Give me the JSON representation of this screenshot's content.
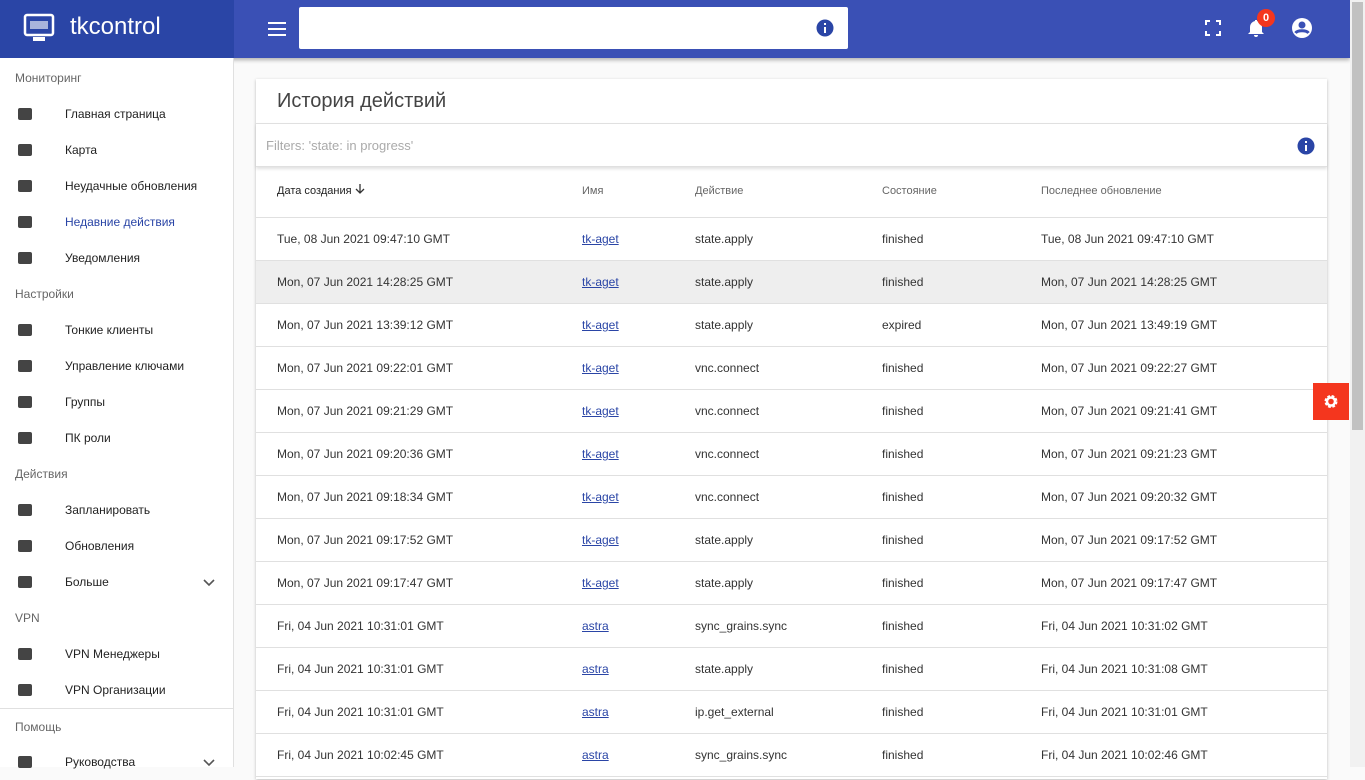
{
  "header": {
    "logo": "tkcontrol",
    "notifications": "0"
  },
  "sidebar": [
    {
      "title": "Мониторинг",
      "items": [
        "Главная страница",
        "Карта",
        "Неудачные обновления",
        "Недавние действия",
        "Уведомления"
      ]
    },
    {
      "title": "Настройки",
      "items": [
        "Тонкие клиенты",
        "Управление ключами",
        "Группы",
        "ПК роли"
      ]
    },
    {
      "title": "Действия",
      "items": [
        "Запланировать",
        "Обновления",
        "Больше"
      ]
    },
    {
      "title": "VPN",
      "items": [
        "VPN Менеджеры",
        "VPN Организации"
      ]
    },
    {
      "title": "Помощь",
      "items": [
        "Руководства"
      ]
    }
  ],
  "card": {
    "title": "История действий",
    "filter": "Filters: 'state: in progress'"
  },
  "table": {
    "columns": [
      "Дата создания",
      "Имя",
      "Действие",
      "Состояние",
      "Последнее обновление"
    ],
    "rows": [
      [
        "Tue, 08 Jun 2021 09:47:10 GMT",
        "tk-aget",
        "state.apply",
        "finished",
        "Tue, 08 Jun 2021 09:47:10 GMT"
      ],
      [
        "Mon, 07 Jun 2021 14:28:25 GMT",
        "tk-aget",
        "state.apply",
        "finished",
        "Mon, 07 Jun 2021 14:28:25 GMT"
      ],
      [
        "Mon, 07 Jun 2021 13:39:12 GMT",
        "tk-aget",
        "state.apply",
        "expired",
        "Mon, 07 Jun 2021 13:49:19 GMT"
      ],
      [
        "Mon, 07 Jun 2021 09:22:01 GMT",
        "tk-aget",
        "vnc.connect",
        "finished",
        "Mon, 07 Jun 2021 09:22:27 GMT"
      ],
      [
        "Mon, 07 Jun 2021 09:21:29 GMT",
        "tk-aget",
        "vnc.connect",
        "finished",
        "Mon, 07 Jun 2021 09:21:41 GMT"
      ],
      [
        "Mon, 07 Jun 2021 09:20:36 GMT",
        "tk-aget",
        "vnc.connect",
        "finished",
        "Mon, 07 Jun 2021 09:21:23 GMT"
      ],
      [
        "Mon, 07 Jun 2021 09:18:34 GMT",
        "tk-aget",
        "vnc.connect",
        "finished",
        "Mon, 07 Jun 2021 09:20:32 GMT"
      ],
      [
        "Mon, 07 Jun 2021 09:17:52 GMT",
        "tk-aget",
        "state.apply",
        "finished",
        "Mon, 07 Jun 2021 09:17:52 GMT"
      ],
      [
        "Mon, 07 Jun 2021 09:17:47 GMT",
        "tk-aget",
        "state.apply",
        "finished",
        "Mon, 07 Jun 2021 09:17:47 GMT"
      ],
      [
        "Fri, 04 Jun 2021 10:31:01 GMT",
        "astra",
        "sync_grains.sync",
        "finished",
        "Fri, 04 Jun 2021 10:31:02 GMT"
      ],
      [
        "Fri, 04 Jun 2021 10:31:01 GMT",
        "astra",
        "state.apply",
        "finished",
        "Fri, 04 Jun 2021 10:31:08 GMT"
      ],
      [
        "Fri, 04 Jun 2021 10:31:01 GMT",
        "astra",
        "ip.get_external",
        "finished",
        "Fri, 04 Jun 2021 10:31:01 GMT"
      ],
      [
        "Fri, 04 Jun 2021 10:02:45 GMT",
        "astra",
        "sync_grains.sync",
        "finished",
        "Fri, 04 Jun 2021 10:02:46 GMT"
      ]
    ]
  }
}
